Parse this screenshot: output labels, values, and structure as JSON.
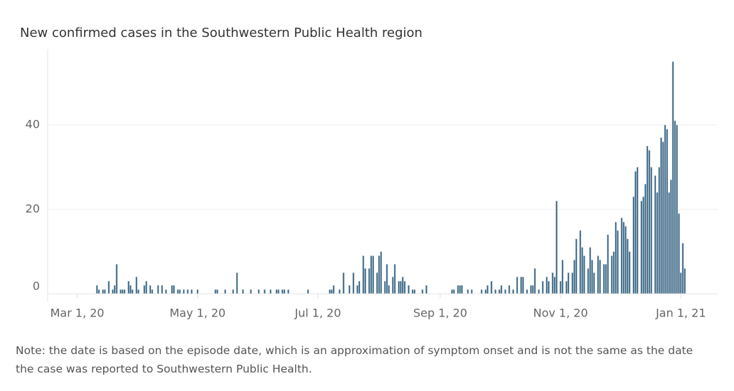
{
  "chart_data": {
    "type": "bar",
    "title": "New confirmed cases in the Southwestern Public Health region",
    "note": "Note: the date is based on the episode date, which is an approximation of symptom onset and is not the same as the date the case was reported to Southwestern Public Health.",
    "color": "#2e5f80",
    "grid": true,
    "xlim": [
      "2020-02-15",
      "2021-01-20"
    ],
    "xticks": [
      {
        "value": "2020-03-01",
        "label": "Mar 1, 20"
      },
      {
        "value": "2020-05-01",
        "label": "May 1, 20"
      },
      {
        "value": "2020-07-01",
        "label": "Jul 1, 20"
      },
      {
        "value": "2020-09-01",
        "label": "Sep 1, 20"
      },
      {
        "value": "2020-11-01",
        "label": "Nov 1, 20"
      },
      {
        "value": "2021-01-01",
        "label": "Jan 1, 21"
      }
    ],
    "ylim": [
      0,
      58
    ],
    "yticks": [
      0,
      20,
      40
    ],
    "x": [
      "2020-03-11",
      "2020-03-12",
      "2020-03-14",
      "2020-03-15",
      "2020-03-17",
      "2020-03-19",
      "2020-03-20",
      "2020-03-21",
      "2020-03-23",
      "2020-03-24",
      "2020-03-25",
      "2020-03-27",
      "2020-03-28",
      "2020-03-29",
      "2020-03-31",
      "2020-04-01",
      "2020-04-04",
      "2020-04-05",
      "2020-04-07",
      "2020-04-08",
      "2020-04-11",
      "2020-04-13",
      "2020-04-15",
      "2020-04-18",
      "2020-04-19",
      "2020-04-21",
      "2020-04-22",
      "2020-04-24",
      "2020-04-26",
      "2020-04-28",
      "2020-05-01",
      "2020-05-10",
      "2020-05-11",
      "2020-05-15",
      "2020-05-19",
      "2020-05-21",
      "2020-05-24",
      "2020-05-28",
      "2020-06-01",
      "2020-06-04",
      "2020-06-07",
      "2020-06-10",
      "2020-06-11",
      "2020-06-13",
      "2020-06-14",
      "2020-06-16",
      "2020-06-26",
      "2020-07-07",
      "2020-07-08",
      "2020-07-09",
      "2020-07-12",
      "2020-07-14",
      "2020-07-17",
      "2020-07-19",
      "2020-07-21",
      "2020-07-22",
      "2020-07-24",
      "2020-07-25",
      "2020-07-27",
      "2020-07-28",
      "2020-07-29",
      "2020-07-31",
      "2020-08-01",
      "2020-08-02",
      "2020-08-04",
      "2020-08-05",
      "2020-08-06",
      "2020-08-08",
      "2020-08-09",
      "2020-08-11",
      "2020-08-12",
      "2020-08-13",
      "2020-08-14",
      "2020-08-16",
      "2020-08-18",
      "2020-08-19",
      "2020-08-23",
      "2020-08-25",
      "2020-09-07",
      "2020-09-08",
      "2020-09-10",
      "2020-09-11",
      "2020-09-12",
      "2020-09-15",
      "2020-09-17",
      "2020-09-22",
      "2020-09-24",
      "2020-09-25",
      "2020-09-27",
      "2020-09-29",
      "2020-10-01",
      "2020-10-02",
      "2020-10-04",
      "2020-10-06",
      "2020-10-08",
      "2020-10-10",
      "2020-10-12",
      "2020-10-13",
      "2020-10-15",
      "2020-10-17",
      "2020-10-18",
      "2020-10-19",
      "2020-10-21",
      "2020-10-23",
      "2020-10-25",
      "2020-10-26",
      "2020-10-28",
      "2020-10-29",
      "2020-10-30",
      "2020-11-01",
      "2020-11-02",
      "2020-11-04",
      "2020-11-05",
      "2020-11-07",
      "2020-11-08",
      "2020-11-09",
      "2020-11-11",
      "2020-11-12",
      "2020-11-13",
      "2020-11-15",
      "2020-11-16",
      "2020-11-17",
      "2020-11-18",
      "2020-11-20",
      "2020-11-21",
      "2020-11-23",
      "2020-11-24",
      "2020-11-25",
      "2020-11-27",
      "2020-11-28",
      "2020-11-29",
      "2020-11-30",
      "2020-12-02",
      "2020-12-03",
      "2020-12-04",
      "2020-12-05",
      "2020-12-06",
      "2020-12-08",
      "2020-12-09",
      "2020-12-10",
      "2020-12-12",
      "2020-12-13",
      "2020-12-14",
      "2020-12-15",
      "2020-12-16",
      "2020-12-17",
      "2020-12-19",
      "2020-12-20",
      "2020-12-21",
      "2020-12-22",
      "2020-12-23",
      "2020-12-24",
      "2020-12-25",
      "2020-12-26",
      "2020-12-27",
      "2020-12-28",
      "2020-12-29",
      "2020-12-30",
      "2020-12-31",
      "2021-01-01",
      "2021-01-02",
      "2021-01-03"
    ],
    "values": [
      2,
      1,
      1,
      1,
      3,
      1,
      2,
      7,
      1,
      1,
      1,
      3,
      2,
      1,
      4,
      1,
      2,
      3,
      2,
      1,
      2,
      2,
      1,
      2,
      2,
      1,
      1,
      1,
      1,
      1,
      1,
      1,
      1,
      1,
      1,
      5,
      1,
      1,
      1,
      1,
      1,
      1,
      1,
      1,
      1,
      1,
      1,
      1,
      1,
      2,
      1,
      5,
      2,
      5,
      2,
      3,
      9,
      6,
      6,
      9,
      9,
      5,
      9,
      10,
      3,
      7,
      2,
      4,
      7,
      3,
      3,
      4,
      3,
      2,
      1,
      1,
      1,
      2,
      1,
      1,
      2,
      2,
      2,
      1,
      1,
      1,
      1,
      2,
      3,
      1,
      1,
      2,
      1,
      2,
      1,
      4,
      4,
      4,
      1,
      2,
      2,
      6,
      1,
      3,
      4,
      3,
      5,
      4,
      22,
      3,
      8,
      3,
      5,
      5,
      8,
      13,
      15,
      11,
      9,
      6,
      11,
      8,
      5,
      9,
      8,
      7,
      7,
      14,
      9,
      10,
      17,
      15,
      18,
      17,
      16,
      13,
      10,
      23,
      29,
      30,
      22,
      23,
      26,
      35,
      34,
      30,
      28,
      24,
      30,
      37,
      36,
      40,
      39,
      24,
      27,
      55,
      41,
      40,
      19,
      5,
      12,
      6
    ]
  }
}
